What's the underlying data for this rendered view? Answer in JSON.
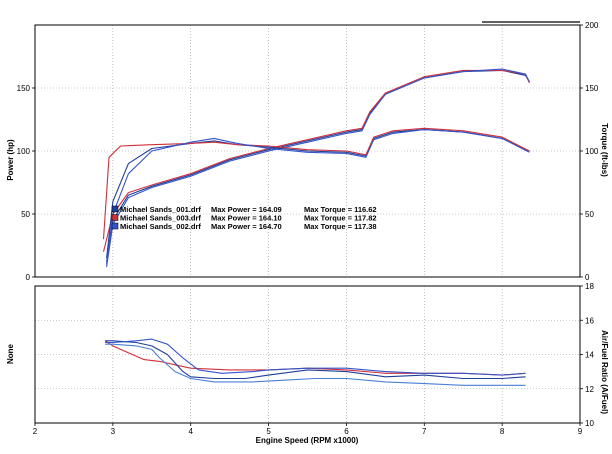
{
  "chart_data": [
    {
      "type": "line",
      "panel": "upper",
      "x_ticks": [
        "2",
        "3",
        "4",
        "5",
        "6",
        "7",
        "8",
        "9"
      ],
      "xlim": [
        2,
        9
      ],
      "ylabel": "Power (hp)",
      "ylim": [
        0,
        200
      ],
      "y_ticks": [
        "0",
        "50",
        "100",
        "150"
      ],
      "y2label": "Torque (ft-lbs)",
      "y2lim": [
        0,
        200
      ],
      "y2_ticks": [
        "0",
        "50",
        "100",
        "150",
        "200"
      ],
      "grid": true,
      "legend_position": "lower-left",
      "legend": [
        {
          "file": "Michael Sands_001.drf",
          "power": "Max Power = 164.09",
          "torque": "Max Torque = 116.62",
          "color": "#1f3f99"
        },
        {
          "file": "Michael Sands_003.drf",
          "power": "Max Power = 164.10",
          "torque": "Max Torque = 117.82",
          "color": "#d0303a"
        },
        {
          "file": "Michael Sands_002.drf",
          "power": "Max Power = 164.70",
          "torque": "Max Torque = 117.38",
          "color": "#3355cc"
        }
      ],
      "series": [
        {
          "name": "Michael Sands_001.drf Power",
          "color": "#1f3f99",
          "x": [
            2.92,
            3.0,
            3.2,
            3.5,
            4.0,
            4.5,
            5.0,
            5.5,
            6.0,
            6.2,
            6.3,
            6.5,
            7.0,
            7.5,
            8.0,
            8.3,
            8.35
          ],
          "y": [
            12,
            45,
            65,
            72,
            81,
            93,
            101,
            108,
            115,
            117,
            130,
            145,
            158,
            163,
            164,
            160,
            155
          ]
        },
        {
          "name": "Michael Sands_003.drf Power",
          "color": "#d0303a",
          "x": [
            2.88,
            3.0,
            3.2,
            3.5,
            4.0,
            4.5,
            5.0,
            5.5,
            6.0,
            6.2,
            6.3,
            6.5,
            7.0,
            7.5,
            8.0,
            8.3,
            8.35
          ],
          "y": [
            20,
            50,
            67,
            73,
            82,
            94,
            102,
            109,
            116,
            118,
            131,
            146,
            159,
            164,
            164,
            161,
            154
          ]
        },
        {
          "name": "Michael Sands_002.drf Power",
          "color": "#3355cc",
          "x": [
            2.92,
            3.0,
            3.2,
            3.5,
            4.0,
            4.5,
            5.0,
            5.5,
            6.0,
            6.2,
            6.3,
            6.5,
            7.0,
            7.5,
            8.0,
            8.3,
            8.35
          ],
          "y": [
            8,
            42,
            63,
            71,
            80,
            92,
            100,
            107,
            114,
            116,
            129,
            145,
            158,
            163,
            165,
            161,
            155
          ]
        },
        {
          "name": "Michael Sands_001.drf Torque",
          "color": "#1f3f99",
          "x": [
            2.92,
            3.0,
            3.2,
            3.5,
            4.0,
            4.3,
            4.6,
            5.0,
            5.5,
            6.0,
            6.25,
            6.35,
            6.6,
            7.0,
            7.5,
            8.0,
            8.35
          ],
          "y": [
            15,
            60,
            90,
            102,
            106,
            108,
            105,
            103,
            100,
            99,
            96,
            110,
            115,
            117,
            115,
            110,
            100
          ]
        },
        {
          "name": "Michael Sands_003.drf Torque",
          "color": "#d0303a",
          "x": [
            2.88,
            2.95,
            3.1,
            3.5,
            4.0,
            4.3,
            4.6,
            5.0,
            5.5,
            6.0,
            6.25,
            6.35,
            6.6,
            7.0,
            7.5,
            8.0,
            8.35
          ],
          "y": [
            30,
            95,
            104,
            105,
            106,
            107,
            105,
            104,
            101,
            100,
            97,
            111,
            116,
            118,
            116,
            111,
            100
          ]
        },
        {
          "name": "Michael Sands_002.drf Torque",
          "color": "#3355cc",
          "x": [
            2.92,
            3.0,
            3.2,
            3.5,
            4.0,
            4.3,
            4.6,
            5.0,
            5.5,
            6.0,
            6.25,
            6.35,
            6.6,
            7.0,
            7.5,
            8.0,
            8.35
          ],
          "y": [
            10,
            50,
            82,
            100,
            107,
            110,
            106,
            102,
            99,
            98,
            95,
            109,
            114,
            117,
            115,
            110,
            99
          ]
        }
      ]
    },
    {
      "type": "line",
      "panel": "lower",
      "xlabel": "Engine Speed (RPM x1000)",
      "x_ticks": [
        "2",
        "3",
        "4",
        "5",
        "6",
        "7",
        "8",
        "9"
      ],
      "xlim": [
        2,
        9
      ],
      "ylabel": "None",
      "y2label": "Air/Fuel Ratio (A/Fuel)",
      "y2lim": [
        10,
        18
      ],
      "y2_ticks": [
        "10",
        "12",
        "14",
        "16",
        "18"
      ],
      "grid": true,
      "series": [
        {
          "color": "#d0303a",
          "x": [
            2.9,
            3.0,
            3.2,
            3.4,
            3.6,
            3.8,
            4.0,
            4.5,
            5.0,
            5.5,
            6.0,
            6.5,
            7.0,
            7.5,
            8.0,
            8.3
          ],
          "y": [
            14.8,
            14.5,
            14.1,
            13.7,
            13.6,
            13.4,
            13.2,
            13.1,
            13.1,
            13.2,
            13.1,
            12.9,
            12.9,
            12.9,
            12.8,
            12.9
          ]
        },
        {
          "color": "#1f3f99",
          "x": [
            2.9,
            3.0,
            3.3,
            3.5,
            3.7,
            3.9,
            4.0,
            4.3,
            4.7,
            5.0,
            5.5,
            6.0,
            6.5,
            7.0,
            7.5,
            8.0,
            8.3
          ],
          "y": [
            14.8,
            14.8,
            14.7,
            14.5,
            14.0,
            13.0,
            12.7,
            12.6,
            12.6,
            12.8,
            13.1,
            13.0,
            12.7,
            12.8,
            12.6,
            12.6,
            12.7
          ]
        },
        {
          "color": "#3355cc",
          "x": [
            2.9,
            3.0,
            3.3,
            3.5,
            3.7,
            3.9,
            4.1,
            4.4,
            4.8,
            5.0,
            5.5,
            6.0,
            6.5,
            7.0,
            7.5,
            8.0,
            8.3
          ],
          "y": [
            14.7,
            14.7,
            14.8,
            14.9,
            14.6,
            13.8,
            13.1,
            12.9,
            13.0,
            13.1,
            13.2,
            13.2,
            13.0,
            12.9,
            12.9,
            12.8,
            12.9
          ]
        },
        {
          "color": "#4a7fd4",
          "x": [
            2.9,
            3.0,
            3.3,
            3.5,
            3.6,
            3.8,
            4.0,
            4.3,
            4.8,
            5.2,
            5.6,
            6.0,
            6.5,
            7.0,
            7.5,
            8.0,
            8.3
          ],
          "y": [
            14.6,
            14.6,
            14.5,
            14.3,
            13.8,
            13.0,
            12.6,
            12.4,
            12.4,
            12.5,
            12.6,
            12.6,
            12.4,
            12.3,
            12.2,
            12.2,
            12.2
          ]
        }
      ]
    }
  ]
}
